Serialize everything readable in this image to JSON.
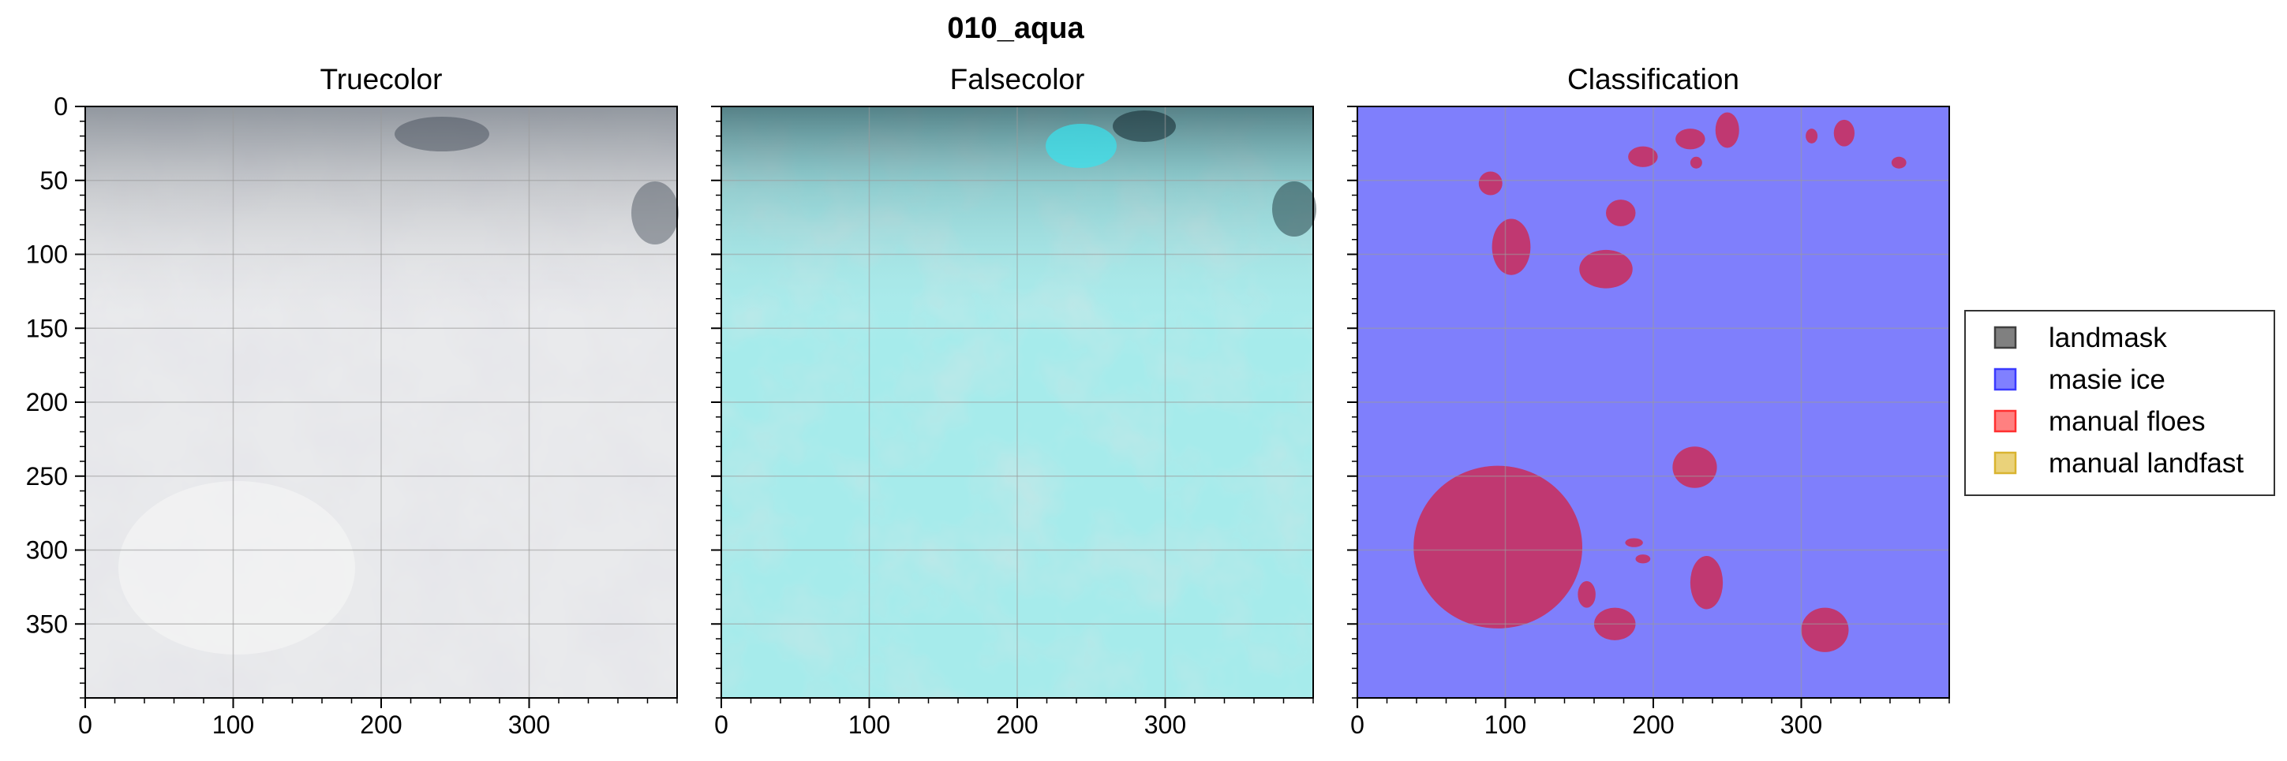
{
  "figure": {
    "suptitle": "010_aqua"
  },
  "chart_data": {
    "type": "image",
    "layout": "1x3 panels with shared y-axis",
    "axes": {
      "xlim": [
        0,
        400
      ],
      "ylim": [
        400,
        0
      ],
      "x_ticks": [
        0,
        100,
        200,
        300
      ],
      "y_ticks": [
        0,
        50,
        100,
        150,
        200,
        250,
        300,
        350
      ],
      "x_minor_step": 20,
      "y_minor_step": 10,
      "grid": true
    },
    "panels": [
      {
        "id": "truecolor",
        "title": "Truecolor",
        "content": "cloud-covered satellite truecolor image"
      },
      {
        "id": "falsecolor",
        "title": "Falsecolor",
        "content": "cloud-covered satellite falsecolor image (cyan)"
      },
      {
        "id": "classification",
        "title": "Classification",
        "content": "masie ice field with manual floe polygons",
        "background_class": "masie ice",
        "floes": [
          {
            "cx": 95,
            "cy": 298,
            "rx": 57,
            "ry": 55
          },
          {
            "cx": 104,
            "cy": 95,
            "rx": 13,
            "ry": 19
          },
          {
            "cx": 168,
            "cy": 110,
            "rx": 18,
            "ry": 13
          },
          {
            "cx": 178,
            "cy": 72,
            "rx": 10,
            "ry": 9
          },
          {
            "cx": 193,
            "cy": 34,
            "rx": 10,
            "ry": 7
          },
          {
            "cx": 225,
            "cy": 22,
            "rx": 10,
            "ry": 7
          },
          {
            "cx": 250,
            "cy": 16,
            "rx": 8,
            "ry": 12
          },
          {
            "cx": 229,
            "cy": 38,
            "rx": 4,
            "ry": 4
          },
          {
            "cx": 329,
            "cy": 18,
            "rx": 7,
            "ry": 9
          },
          {
            "cx": 307,
            "cy": 20,
            "rx": 4,
            "ry": 5
          },
          {
            "cx": 366,
            "cy": 38,
            "rx": 5,
            "ry": 4
          },
          {
            "cx": 90,
            "cy": 52,
            "rx": 8,
            "ry": 8
          },
          {
            "cx": 228,
            "cy": 244,
            "rx": 15,
            "ry": 14
          },
          {
            "cx": 236,
            "cy": 322,
            "rx": 11,
            "ry": 18
          },
          {
            "cx": 316,
            "cy": 354,
            "rx": 16,
            "ry": 15
          },
          {
            "cx": 174,
            "cy": 350,
            "rx": 14,
            "ry": 11
          },
          {
            "cx": 155,
            "cy": 330,
            "rx": 6,
            "ry": 9
          },
          {
            "cx": 187,
            "cy": 295,
            "rx": 6,
            "ry": 3
          },
          {
            "cx": 193,
            "cy": 306,
            "rx": 5,
            "ry": 3
          }
        ]
      }
    ],
    "legend": {
      "placement": "right",
      "entries": [
        {
          "label": "landmask",
          "color": "#808080",
          "edge": "#404040"
        },
        {
          "label": "masie ice",
          "color": "#8080ff",
          "edge": "#3a3aff"
        },
        {
          "label": "manual floes",
          "color": "#ff8080",
          "edge": "#ff3030"
        },
        {
          "label": "manual landfast",
          "color": "#ead27a",
          "edge": "#d9b430"
        }
      ]
    },
    "colors": {
      "masie_ice_fill": "#7f7ffc",
      "floe_fill": "#c03871",
      "grid": "#9a9a9a"
    }
  }
}
